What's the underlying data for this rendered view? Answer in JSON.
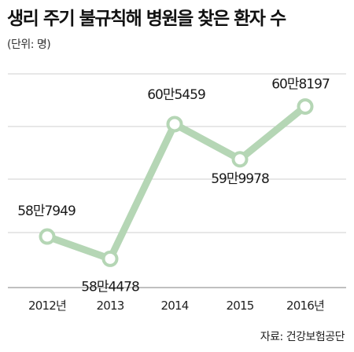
{
  "header": {
    "title": "생리 주기 불규칙해 병원을 찾은 환자 수",
    "unit": "(단위: 명)"
  },
  "footer": {
    "source": "자료: 건강보험공단"
  },
  "colors": {
    "line": "#b5d6b5",
    "marker_fill": "#ffffff",
    "grid": "#cfcfcf",
    "axis": "#9a9a9a"
  },
  "chart_data": {
    "type": "line",
    "title": "생리 주기 불규칙해 병원을 찾은 환자 수",
    "categories": [
      "2012년",
      "2013",
      "2014",
      "2015",
      "2016년"
    ],
    "values": [
      587949,
      584478,
      605459,
      599978,
      608197
    ],
    "data_labels": [
      "58만7949",
      "58만4478",
      "60만5459",
      "59만9978",
      "60만8197"
    ],
    "ylabel": "(단위: 명)",
    "ylim": [
      580000,
      615000
    ],
    "grid": true
  }
}
